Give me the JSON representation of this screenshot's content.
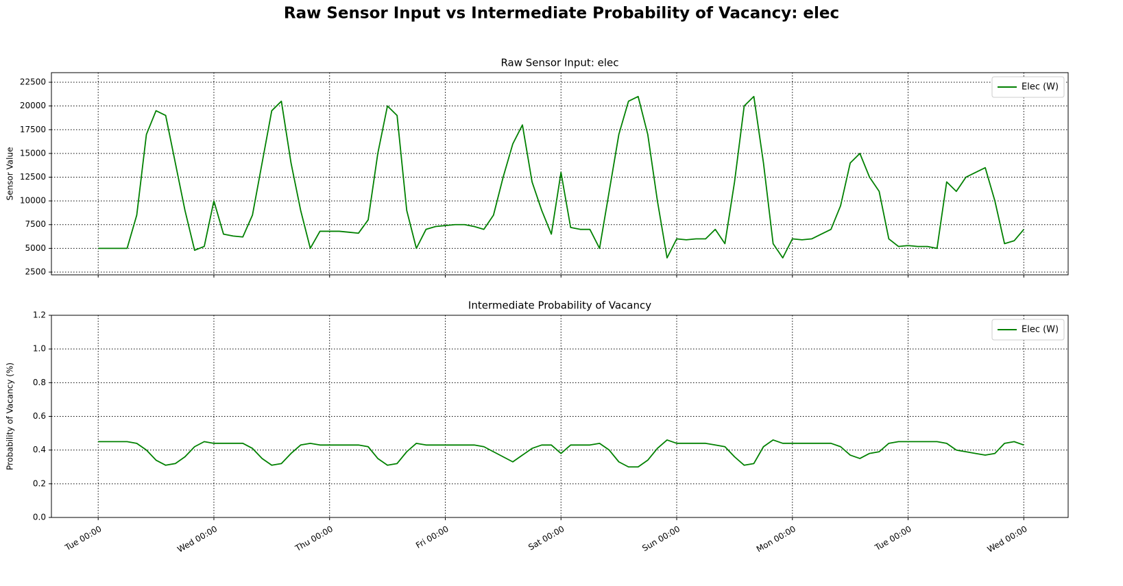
{
  "chart_data": [
    {
      "type": "line",
      "suptitle": "Raw Sensor Input vs Intermediate Probability of Vacancy: elec",
      "title": "Raw Sensor Input: elec",
      "ylabel": "Sensor Value",
      "x": [
        0,
        2,
        4,
        6,
        8,
        10,
        12,
        14,
        16,
        18,
        20,
        22,
        24,
        26,
        28,
        30,
        32,
        34,
        36,
        38,
        40,
        42,
        44,
        46,
        48,
        50,
        52,
        54,
        56,
        58,
        60,
        62,
        64,
        66,
        68,
        70,
        72,
        74,
        76,
        78,
        80,
        82,
        84,
        86,
        88,
        90,
        92,
        94,
        96,
        98,
        100,
        102,
        104,
        106,
        108,
        110,
        112,
        114,
        116,
        118,
        120,
        122,
        124,
        126,
        128,
        130,
        132,
        134,
        136,
        138,
        140,
        142,
        144,
        146,
        148,
        150,
        152,
        154,
        156,
        158,
        160,
        162,
        164,
        166,
        168,
        170,
        172,
        174,
        176,
        178,
        180,
        182,
        184,
        186,
        188,
        190,
        192
      ],
      "series": [
        {
          "name": "Elec (W)",
          "color": "#008000",
          "values": [
            5000,
            5000,
            5000,
            5000,
            8500,
            17000,
            19500,
            19000,
            14000,
            9000,
            4800,
            5200,
            10000,
            6500,
            6300,
            6200,
            8500,
            14000,
            19500,
            20500,
            14000,
            9000,
            5000,
            6800,
            6800,
            6800,
            6700,
            6600,
            8000,
            15000,
            20000,
            19000,
            9000,
            5000,
            7000,
            7300,
            7400,
            7500,
            7500,
            7300,
            7000,
            8500,
            12500,
            16000,
            18000,
            12000,
            9000,
            6500,
            13000,
            7200,
            7000,
            7000,
            5000,
            11000,
            17000,
            20500,
            21000,
            17000,
            10000,
            4000,
            6000,
            5900,
            6000,
            6000,
            7000,
            5500,
            12000,
            20000,
            21000,
            14000,
            5500,
            4000,
            6000,
            5900,
            6000,
            6500,
            7000,
            9500,
            14000,
            15000,
            12500,
            11000,
            6000,
            5200,
            5300,
            5200,
            5200,
            5000,
            12000,
            11000,
            12500,
            13000,
            13500,
            10000,
            5500,
            5800,
            7000
          ]
        }
      ],
      "xlim": [
        -9.7,
        201.2
      ],
      "ylim": [
        2211,
        23511
      ],
      "yticks": [
        2500,
        5000,
        7500,
        10000,
        12500,
        15000,
        17500,
        20000,
        22500
      ],
      "grid": true,
      "legend": "upper right"
    },
    {
      "type": "line",
      "title": "Intermediate Probability of Vacancy",
      "ylabel": "Probability of Vacancy (%)",
      "x": [
        0,
        2,
        4,
        6,
        8,
        10,
        12,
        14,
        16,
        18,
        20,
        22,
        24,
        26,
        28,
        30,
        32,
        34,
        36,
        38,
        40,
        42,
        44,
        46,
        48,
        50,
        52,
        54,
        56,
        58,
        60,
        62,
        64,
        66,
        68,
        70,
        72,
        74,
        76,
        78,
        80,
        82,
        84,
        86,
        88,
        90,
        92,
        94,
        96,
        98,
        100,
        102,
        104,
        106,
        108,
        110,
        112,
        114,
        116,
        118,
        120,
        122,
        124,
        126,
        128,
        130,
        132,
        134,
        136,
        138,
        140,
        142,
        144,
        146,
        148,
        150,
        152,
        154,
        156,
        158,
        160,
        162,
        164,
        166,
        168,
        170,
        172,
        174,
        176,
        178,
        180,
        182,
        184,
        186,
        188,
        190,
        192
      ],
      "series": [
        {
          "name": "Elec (W)",
          "color": "#008000",
          "values": [
            0.45,
            0.45,
            0.45,
            0.45,
            0.44,
            0.4,
            0.34,
            0.31,
            0.32,
            0.36,
            0.42,
            0.45,
            0.44,
            0.44,
            0.44,
            0.44,
            0.41,
            0.35,
            0.31,
            0.32,
            0.38,
            0.43,
            0.44,
            0.43,
            0.43,
            0.43,
            0.43,
            0.43,
            0.42,
            0.35,
            0.31,
            0.32,
            0.39,
            0.44,
            0.43,
            0.43,
            0.43,
            0.43,
            0.43,
            0.43,
            0.42,
            0.39,
            0.36,
            0.33,
            0.37,
            0.41,
            0.43,
            0.43,
            0.38,
            0.43,
            0.43,
            0.43,
            0.44,
            0.4,
            0.33,
            0.3,
            0.3,
            0.34,
            0.41,
            0.46,
            0.44,
            0.44,
            0.44,
            0.44,
            0.43,
            0.42,
            0.36,
            0.31,
            0.32,
            0.42,
            0.46,
            0.44,
            0.44,
            0.44,
            0.44,
            0.44,
            0.44,
            0.42,
            0.37,
            0.35,
            0.38,
            0.39,
            0.44,
            0.45,
            0.45,
            0.45,
            0.45,
            0.45,
            0.44,
            0.4,
            0.39,
            0.38,
            0.37,
            0.38,
            0.44,
            0.45,
            0.43
          ]
        }
      ],
      "xlim": [
        -9.7,
        201.2
      ],
      "ylim": [
        0,
        1.2
      ],
      "yticks": [
        {
          "value": 0,
          "label": "0.0"
        },
        0.2,
        0.4,
        0.6,
        0.8,
        {
          "value": 1,
          "label": "1.0"
        },
        1.2
      ],
      "xticks": [
        {
          "value": 0,
          "label": "Tue 00:00"
        },
        {
          "value": 24,
          "label": "Wed 00:00"
        },
        {
          "value": 48,
          "label": "Thu 00:00"
        },
        {
          "value": 72,
          "label": "Fri 00:00"
        },
        {
          "value": 96,
          "label": "Sat 00:00"
        },
        {
          "value": 120,
          "label": "Sun 00:00"
        },
        {
          "value": 144,
          "label": "Mon 00:00"
        },
        {
          "value": 168,
          "label": "Tue 00:00"
        },
        {
          "value": 192,
          "label": "Wed 00:00"
        }
      ],
      "grid": true,
      "legend": "upper right"
    }
  ]
}
